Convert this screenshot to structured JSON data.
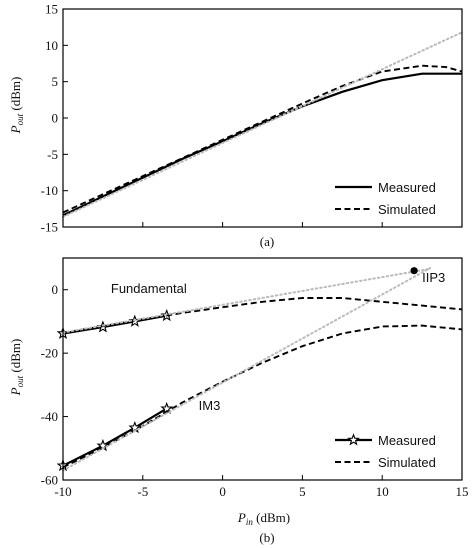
{
  "chart_data": [
    {
      "type": "line",
      "panel_label": "(a)",
      "ylabel": "P",
      "ylabel_sub": "out",
      "ylabel_unit": " (dBm)",
      "xlim": [
        -10,
        15
      ],
      "ylim": [
        -15,
        15
      ],
      "yticks": [
        -15,
        -10,
        -5,
        0,
        5,
        10,
        15
      ],
      "legend_position": "bottom-right",
      "series": [
        {
          "name": "Measured",
          "style": "solid",
          "color": "#000000",
          "x": [
            -10,
            -7.5,
            -5,
            -2.5,
            0,
            2.5,
            5,
            7.5,
            10,
            12.5,
            15
          ],
          "y": [
            -13.4,
            -10.8,
            -8.2,
            -5.6,
            -3.2,
            -0.7,
            1.6,
            3.6,
            5.2,
            6.1,
            6.1
          ]
        },
        {
          "name": "Simulated",
          "style": "dashed",
          "color": "#000000",
          "x": [
            -10,
            -7.5,
            -5,
            -2.5,
            0,
            2.5,
            5,
            7.5,
            10,
            12.5,
            14,
            15
          ],
          "y": [
            -13.0,
            -10.5,
            -8.0,
            -5.5,
            -3.0,
            -0.5,
            2.0,
            4.4,
            6.4,
            7.2,
            7.0,
            6.4
          ]
        },
        {
          "style": "dotted",
          "color": "#bbbbbb",
          "x": [
            -10,
            15
          ],
          "y": [
            -13.6,
            11.8
          ]
        }
      ]
    },
    {
      "type": "line",
      "panel_label": "(b)",
      "xlabel": "P",
      "xlabel_sub": "in",
      "xlabel_unit": " (dBm)",
      "ylabel": "P",
      "ylabel_sub": "out",
      "ylabel_unit": " (dBm)",
      "xlim": [
        -10,
        15
      ],
      "ylim": [
        -60,
        10
      ],
      "xticks": [
        -10,
        -5,
        0,
        5,
        10,
        15
      ],
      "yticks": [
        -60,
        -40,
        -20,
        0
      ],
      "legend_position": "bottom-right",
      "annotations": [
        {
          "text": "Fundamental",
          "x": -7,
          "y": -1
        },
        {
          "text": "IIP3",
          "x": 12.5,
          "y": 2.5
        },
        {
          "text": "IM3",
          "x": -1.5,
          "y": -38
        }
      ],
      "iip3_point": {
        "x": 12,
        "y": 6
      },
      "series": [
        {
          "name": "Measured",
          "style": "solid",
          "marker": "star",
          "color": "#000000",
          "curves": [
            {
              "x": [
                -10,
                -7.5,
                -5.5,
                -3.5
              ],
              "y": [
                -13.8,
                -11.8,
                -10.0,
                -8.2
              ]
            },
            {
              "x": [
                -10,
                -7.5,
                -5.5,
                -3.5
              ],
              "y": [
                -55.5,
                -49.2,
                -43.5,
                -37.5
              ]
            }
          ]
        },
        {
          "name": "Simulated",
          "style": "dashed",
          "color": "#000000",
          "curves": [
            {
              "x": [
                -10,
                -7.5,
                -5,
                -2.5,
                0,
                2.5,
                5,
                7.5,
                10,
                12.5,
                15
              ],
              "y": [
                -13.6,
                -11.5,
                -9.3,
                -7.3,
                -5.5,
                -3.8,
                -2.6,
                -2.6,
                -3.8,
                -5.0,
                -6.2
              ]
            },
            {
              "x": [
                -10,
                -7.5,
                -5,
                -2.5,
                0,
                2.5,
                5,
                7.5,
                10,
                12.5,
                15
              ],
              "y": [
                -56,
                -49.8,
                -43.0,
                -35.5,
                -29.0,
                -23.0,
                -17.8,
                -13.8,
                -11.6,
                -11.3,
                -12.5
              ]
            }
          ]
        },
        {
          "style": "dotted",
          "color": "#bbbbbb",
          "curves": [
            {
              "x": [
                -10,
                13
              ],
              "y": [
                -13.5,
                6.6
              ]
            },
            {
              "x": [
                -10,
                13
              ],
              "y": [
                -57,
                6.8
              ]
            }
          ]
        }
      ]
    }
  ]
}
